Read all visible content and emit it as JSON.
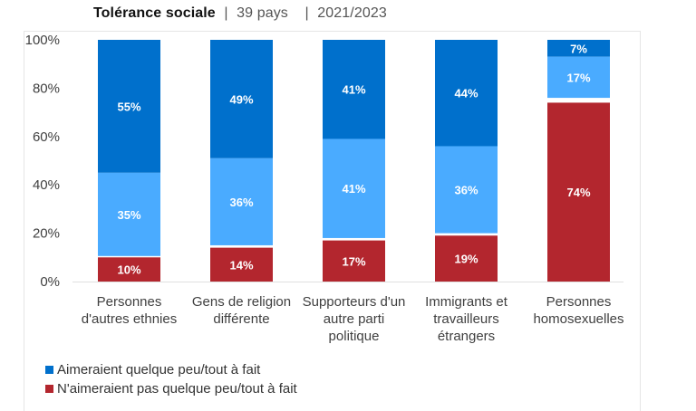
{
  "header": {
    "title_bold": "Tolérance sociale",
    "separator": "|",
    "countries": "39 pays",
    "period": "2021/2023"
  },
  "colors": {
    "like_strong": "#0070cc",
    "like_some": "#4aabff",
    "dislike": "#b3262e",
    "axis": "#e0e0e0"
  },
  "chart_data": {
    "type": "bar",
    "stacked": true,
    "title": "Tolérance sociale | 39 pays | 2021/2023",
    "xlabel": "",
    "ylabel": "",
    "ylim": [
      0,
      100
    ],
    "yticks": [
      "0%",
      "20%",
      "40%",
      "60%",
      "80%",
      "100%"
    ],
    "ytick_values": [
      0,
      20,
      40,
      60,
      80,
      100
    ],
    "grid": false,
    "categories": [
      [
        "Personnes",
        "d'autres ethnies"
      ],
      [
        "Gens de religion",
        "différente"
      ],
      [
        "Supporteurs d'un",
        "autre parti",
        "politique"
      ],
      [
        "Immigrants et",
        "travailleurs",
        "étrangers"
      ],
      [
        "Personnes",
        "homosexuelles"
      ]
    ],
    "series": [
      {
        "name": "N'aimeraient pas quelque peu/tout à fait",
        "color": "#b3262e",
        "values": [
          10,
          14,
          17,
          19,
          74
        ],
        "labels": [
          "10%",
          "14%",
          "17%",
          "19%",
          "74%"
        ]
      },
      {
        "name": "Aimeraient quelque peu",
        "color": "#4aabff",
        "values": [
          35,
          36,
          41,
          36,
          17
        ],
        "labels": [
          "35%",
          "36%",
          "41%",
          "36%",
          "17%"
        ]
      },
      {
        "name": "Aimeraient tout à fait",
        "color": "#0070cc",
        "values": [
          55,
          49,
          41,
          44,
          7
        ],
        "labels": [
          "55%",
          "49%",
          "41%",
          "44%",
          "7%"
        ]
      }
    ],
    "legend": {
      "position": "bottom-left",
      "entries": [
        {
          "label": "Aimeraient quelque peu/tout à fait",
          "color": "#0070cc"
        },
        {
          "label": "N'aimeraient pas quelque peu/tout à fait",
          "color": "#b3262e"
        }
      ]
    }
  }
}
